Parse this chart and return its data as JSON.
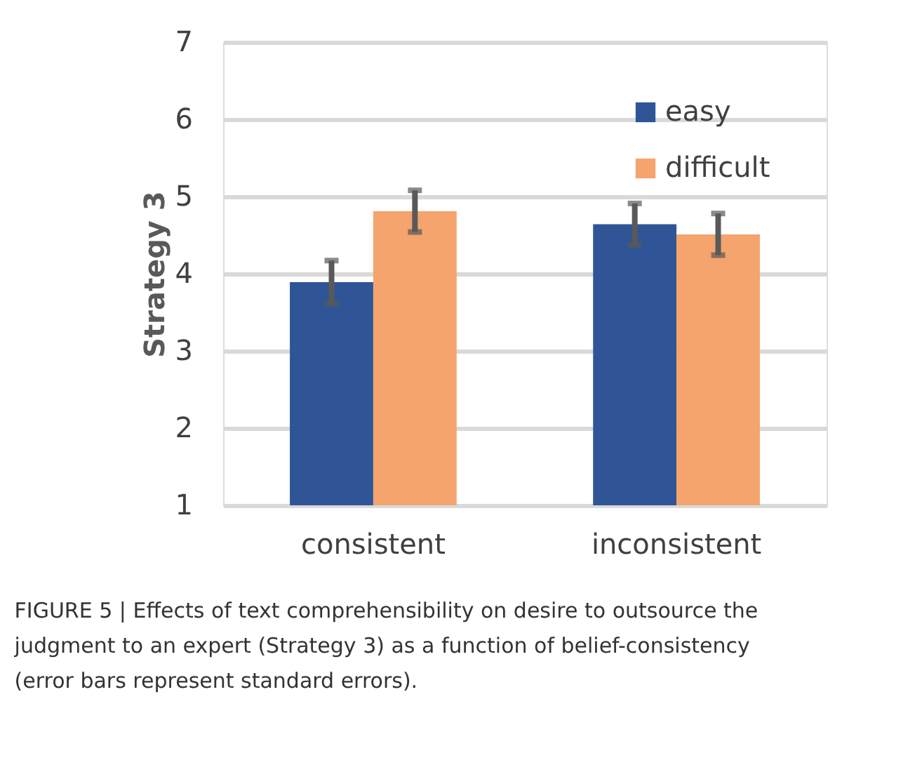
{
  "chart_data": {
    "type": "bar",
    "ylabel": "Strategy 3",
    "categories": [
      "consistent",
      "inconsistent"
    ],
    "series": [
      {
        "name": "easy",
        "color": "#2f5597",
        "values": [
          3.89,
          4.64
        ],
        "errors": [
          0.28,
          0.27
        ]
      },
      {
        "name": "difficult",
        "color": "#f4a46c",
        "values": [
          4.81,
          4.51
        ],
        "errors": [
          0.27,
          0.27
        ]
      }
    ],
    "ylim": [
      1,
      7
    ],
    "yticks": [
      1,
      2,
      3,
      4,
      5,
      6,
      7
    ],
    "grid": "y",
    "legend": "top right",
    "annotations": [
      "FIGURE 5 | Effects of text comprehensibility on desire to outsource the judgment to an expert (Strategy 3) as a function of belief-consistency (error bars represent standard errors)."
    ]
  }
}
